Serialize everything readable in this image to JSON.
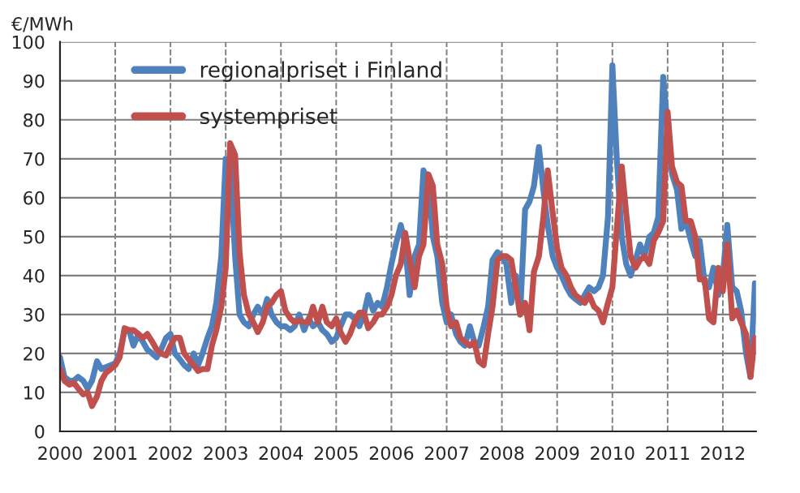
{
  "chart_data": {
    "type": "line",
    "ylabel": "€/MWh",
    "x": [
      2000.0,
      2000.08,
      2000.17,
      2000.25,
      2000.33,
      2000.42,
      2000.5,
      2000.58,
      2000.67,
      2000.75,
      2000.83,
      2000.92,
      2001.0,
      2001.08,
      2001.17,
      2001.25,
      2001.33,
      2001.42,
      2001.5,
      2001.58,
      2001.67,
      2001.75,
      2001.83,
      2001.92,
      2002.0,
      2002.08,
      2002.17,
      2002.25,
      2002.33,
      2002.42,
      2002.5,
      2002.58,
      2002.67,
      2002.75,
      2002.83,
      2002.92,
      2003.0,
      2003.08,
      2003.17,
      2003.25,
      2003.33,
      2003.42,
      2003.5,
      2003.58,
      2003.67,
      2003.75,
      2003.83,
      2003.92,
      2004.0,
      2004.08,
      2004.17,
      2004.25,
      2004.33,
      2004.42,
      2004.5,
      2004.58,
      2004.67,
      2004.75,
      2004.83,
      2004.92,
      2005.0,
      2005.08,
      2005.17,
      2005.25,
      2005.33,
      2005.42,
      2005.5,
      2005.58,
      2005.67,
      2005.75,
      2005.83,
      2005.92,
      2006.0,
      2006.08,
      2006.17,
      2006.25,
      2006.33,
      2006.42,
      2006.5,
      2006.58,
      2006.67,
      2006.75,
      2006.83,
      2006.92,
      2007.0,
      2007.08,
      2007.17,
      2007.25,
      2007.33,
      2007.42,
      2007.5,
      2007.58,
      2007.67,
      2007.75,
      2007.83,
      2007.92,
      2008.0,
      2008.08,
      2008.17,
      2008.25,
      2008.33,
      2008.42,
      2008.5,
      2008.58,
      2008.67,
      2008.75,
      2008.83,
      2008.92,
      2009.0,
      2009.08,
      2009.17,
      2009.25,
      2009.33,
      2009.42,
      2009.5,
      2009.58,
      2009.67,
      2009.75,
      2009.83,
      2009.92,
      2010.0,
      2010.08,
      2010.17,
      2010.25,
      2010.33,
      2010.42,
      2010.5,
      2010.58,
      2010.67,
      2010.75,
      2010.83,
      2010.92,
      2011.0,
      2011.08,
      2011.17,
      2011.25,
      2011.33,
      2011.42,
      2011.5,
      2011.58,
      2011.67,
      2011.75,
      2011.83,
      2011.92,
      2012.0,
      2012.08,
      2012.17,
      2012.25,
      2012.33,
      2012.42,
      2012.5,
      2012.58
    ],
    "series": [
      {
        "name": "regionalpriset i Finland",
        "color": "#4f81bd",
        "values": [
          19,
          14,
          13,
          13,
          14,
          13,
          11,
          13,
          18,
          16,
          16.5,
          17,
          17.5,
          20,
          26,
          26,
          22,
          25,
          23,
          21,
          20,
          19,
          21,
          24,
          25,
          20,
          18.5,
          17,
          16,
          20,
          17,
          20,
          24,
          27,
          33,
          45,
          70,
          69,
          45,
          30,
          28,
          27,
          30,
          32,
          30,
          34,
          30,
          28,
          27,
          27,
          26,
          27,
          30,
          26,
          29,
          27,
          28,
          26,
          25,
          23,
          24,
          27,
          30,
          30,
          29,
          27,
          30,
          35,
          31,
          33,
          32,
          37,
          43,
          48,
          53,
          48,
          35,
          45,
          48,
          67,
          64,
          50,
          45,
          33,
          28,
          30,
          25,
          23,
          22,
          27,
          23,
          22,
          27,
          32,
          44,
          46,
          45,
          43,
          33,
          40,
          30,
          57,
          59,
          63,
          73,
          62,
          53,
          45,
          42,
          40,
          37,
          35,
          34,
          33,
          35,
          37,
          36,
          37,
          40,
          55,
          94,
          70,
          50,
          43,
          40,
          44,
          48,
          45,
          50,
          51,
          55,
          91,
          78,
          66,
          62,
          52,
          54,
          49,
          45,
          49,
          38,
          37,
          42,
          35,
          40,
          53,
          37,
          36,
          31,
          20,
          14,
          38
        ]
      },
      {
        "name": "systempriset",
        "color": "#c0504d",
        "values": [
          16,
          13,
          12,
          12.5,
          11,
          9.5,
          10,
          6.5,
          9,
          13,
          15,
          16,
          17,
          19,
          26.5,
          26,
          26,
          25,
          24,
          25,
          23,
          21,
          20,
          19.5,
          22,
          24,
          24,
          20,
          18.5,
          17,
          15.5,
          16,
          16,
          22,
          26,
          32,
          42,
          74,
          71,
          46,
          35,
          30,
          28,
          25.5,
          28,
          32,
          33,
          35,
          36,
          31,
          29,
          28,
          28.5,
          28,
          28,
          32,
          28,
          32,
          28,
          27,
          29,
          25.5,
          23,
          25,
          28,
          30.5,
          30.5,
          26.5,
          28,
          30,
          30,
          32,
          35,
          40,
          43,
          51,
          44,
          37,
          45,
          48,
          66,
          63,
          48,
          43,
          32,
          27,
          28,
          24,
          23,
          22,
          23,
          18,
          17,
          25,
          32,
          44,
          45,
          45,
          44,
          37,
          30,
          33,
          26,
          41,
          45,
          55,
          67,
          56,
          47,
          42,
          40,
          37,
          35,
          34,
          33,
          35,
          32,
          31,
          28,
          33,
          37,
          52,
          68,
          56,
          45,
          42,
          44,
          45,
          43,
          49,
          51,
          54,
          82,
          68,
          64,
          63,
          54,
          54,
          50,
          39,
          39,
          29,
          28,
          42,
          36,
          48,
          29,
          31,
          28,
          25,
          14,
          24
        ]
      }
    ],
    "xlim": [
      2000,
      2012.6
    ],
    "xticks": [
      2000,
      2001,
      2002,
      2003,
      2004,
      2005,
      2006,
      2007,
      2008,
      2009,
      2010,
      2011,
      2012
    ],
    "ylim": [
      0,
      100
    ],
    "yticks": [
      0,
      10,
      20,
      30,
      40,
      50,
      60,
      70,
      80,
      90,
      100
    ],
    "grid": true,
    "legend": "top left",
    "marker": "none",
    "line_style": "solid"
  }
}
